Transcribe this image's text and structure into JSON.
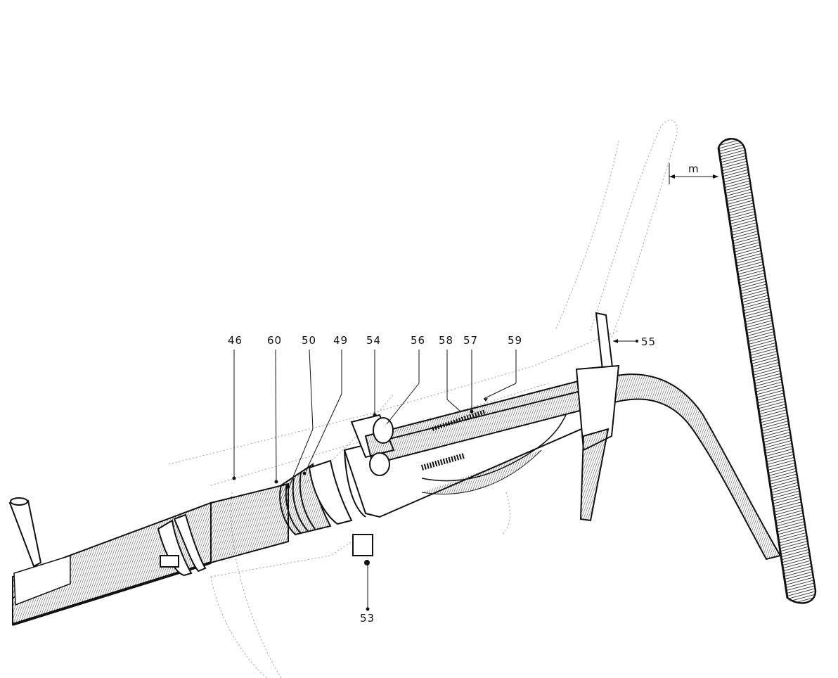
{
  "callouts": [
    {
      "id": "46",
      "label": "46"
    },
    {
      "id": "60",
      "label": "60"
    },
    {
      "id": "50",
      "label": "50"
    },
    {
      "id": "49",
      "label": "49"
    },
    {
      "id": "54",
      "label": "54"
    },
    {
      "id": "56",
      "label": "56"
    },
    {
      "id": "58",
      "label": "58"
    },
    {
      "id": "57",
      "label": "57"
    },
    {
      "id": "59",
      "label": "59"
    },
    {
      "id": "55",
      "label": "55"
    },
    {
      "id": "53",
      "label": "53"
    }
  ],
  "dimension": {
    "label": "m"
  },
  "colors": {
    "ink": "#111111",
    "paper": "#ffffff",
    "ghost": "#9a9a9a"
  }
}
